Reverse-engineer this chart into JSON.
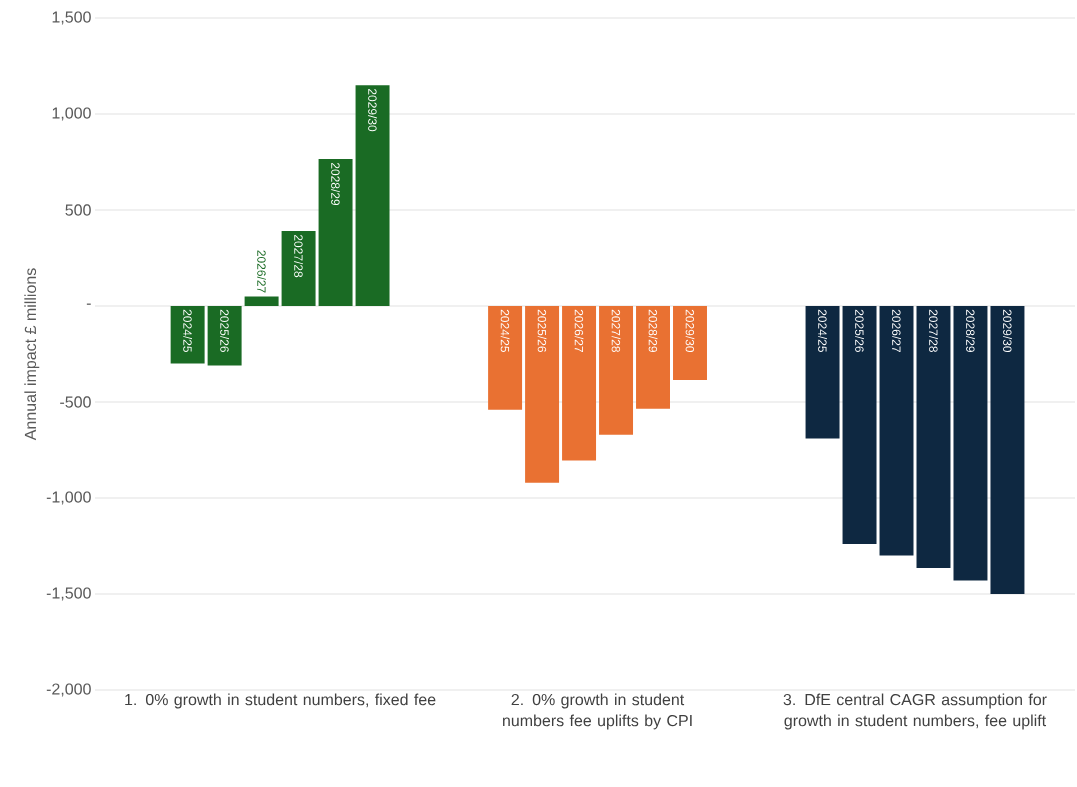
{
  "chart_data": {
    "type": "bar",
    "ylabel": "Annual impact £ millions",
    "categories": [
      "1.  0% growth in student numbers, fixed fee",
      "2.  0% growth in student numbers fee uplifts by CPI",
      "3.  DfE central CAGR assumption for growth in student numbers, fee uplift"
    ],
    "series": [
      {
        "name": "2024/25",
        "colors": [
          "#1a6b24",
          "#e97132",
          "#0e2841"
        ],
        "values": [
          -300,
          -540,
          -690
        ]
      },
      {
        "name": "2025/26",
        "colors": [
          "#1a6b24",
          "#e97132",
          "#0e2841"
        ],
        "values": [
          -310,
          -920,
          -1240
        ]
      },
      {
        "name": "2026/27",
        "colors": [
          "#1a6b24",
          "#e97132",
          "#0e2841"
        ],
        "values": [
          50,
          -805,
          -1300
        ]
      },
      {
        "name": "2027/28",
        "colors": [
          "#1a6b24",
          "#e97132",
          "#0e2841"
        ],
        "values": [
          390,
          -670,
          -1365
        ]
      },
      {
        "name": "2028/29",
        "colors": [
          "#1a6b24",
          "#e97132",
          "#0e2841"
        ],
        "values": [
          765,
          -535,
          -1430
        ]
      },
      {
        "name": "2029/30",
        "colors": [
          "#1a6b24",
          "#e97132",
          "#0e2841"
        ],
        "values": [
          1150,
          -385,
          -1500
        ]
      }
    ],
    "ylim": [
      -2000,
      1500
    ],
    "yticks": [
      {
        "value": -2000,
        "label": "-2,000"
      },
      {
        "value": -1500,
        "label": "-1,500"
      },
      {
        "value": -1000,
        "label": "-1,000"
      },
      {
        "value": -500,
        "label": "-500"
      },
      {
        "value": 0,
        "label": "-"
      },
      {
        "value": 500,
        "label": "500"
      },
      {
        "value": 1000,
        "label": "1,000"
      },
      {
        "value": 1500,
        "label": "1,500"
      }
    ],
    "grid": "y"
  }
}
